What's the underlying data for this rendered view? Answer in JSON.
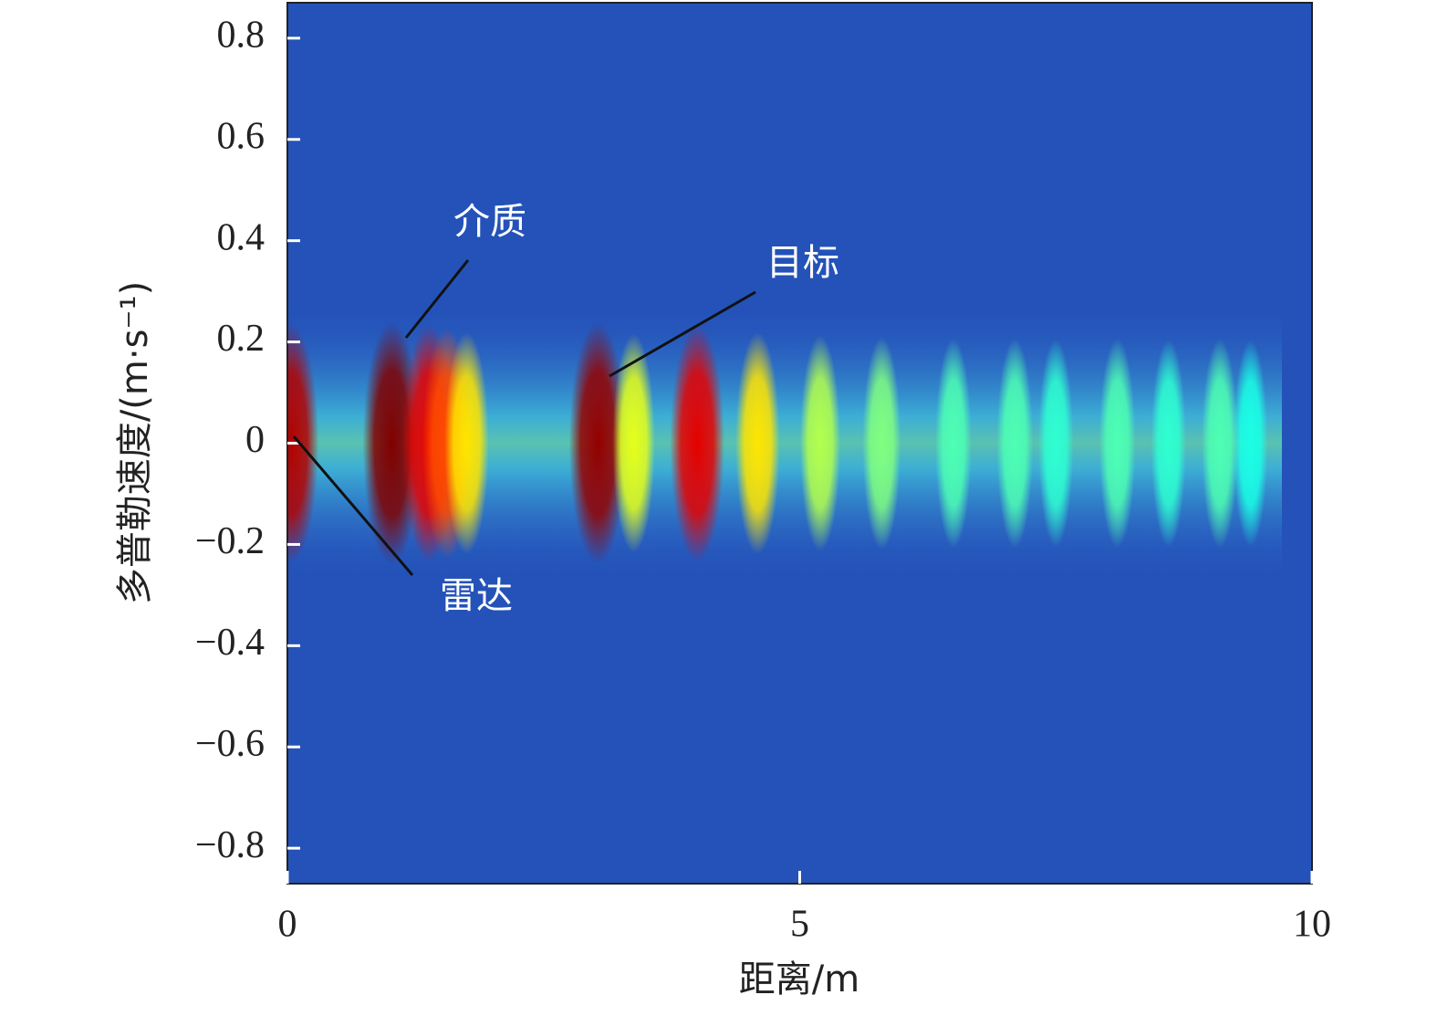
{
  "chart_data": {
    "type": "heatmap",
    "x_label": "距离/m",
    "y_label": "多普勒速度/(m·s⁻¹)",
    "xlim": [
      0,
      10
    ],
    "ylim": [
      -0.87,
      0.87
    ],
    "xticks": [
      0,
      5,
      10
    ],
    "yticks": [
      {
        "value": -0.8,
        "label": "−0.8"
      },
      {
        "value": -0.6,
        "label": "−0.6"
      },
      {
        "value": -0.4,
        "label": "−0.4"
      },
      {
        "value": -0.2,
        "label": "−0.2"
      },
      0,
      0.2,
      0.4,
      0.6,
      0.8
    ],
    "x": [
      0.03,
      1.02,
      1.38,
      1.56,
      1.75,
      3.03,
      3.38,
      4.0,
      4.59,
      5.2,
      5.8,
      6.5,
      7.1,
      7.5,
      8.1,
      8.6,
      9.1,
      9.4
    ],
    "values": [
      0.95,
      1.0,
      0.9,
      0.8,
      0.65,
      0.98,
      0.6,
      0.9,
      0.65,
      0.55,
      0.5,
      0.45,
      0.45,
      0.42,
      0.45,
      0.42,
      0.45,
      0.4
    ],
    "annotations": [
      {
        "text": "介质"
      },
      {
        "text": "目标"
      },
      {
        "text": "雷达"
      }
    ]
  }
}
